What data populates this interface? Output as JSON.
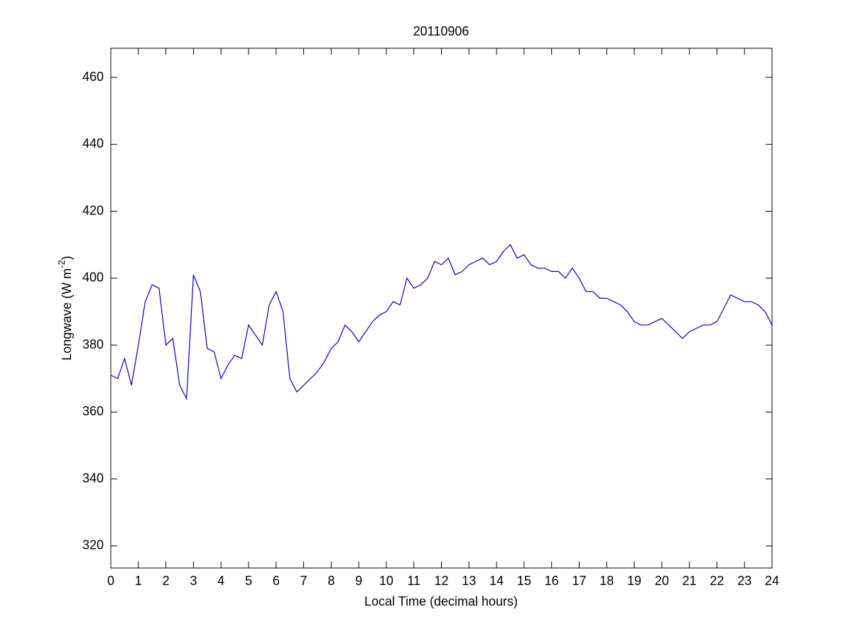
{
  "chart_data": {
    "type": "line",
    "title": "20110906",
    "xlabel": "Local Time (decimal hours)",
    "ylabel": {
      "text": "Longwave (W m",
      "superscript": "-2",
      "suffix": ")"
    },
    "x": [
      0,
      0.25,
      0.5,
      0.75,
      1,
      1.25,
      1.5,
      1.75,
      2,
      2.25,
      2.5,
      2.75,
      3,
      3.25,
      3.5,
      3.75,
      4,
      4.25,
      4.5,
      4.75,
      5,
      5.25,
      5.5,
      5.75,
      6,
      6.25,
      6.5,
      6.75,
      7,
      7.25,
      7.5,
      7.75,
      8,
      8.25,
      8.5,
      8.75,
      9,
      9.25,
      9.5,
      9.75,
      10,
      10.25,
      10.5,
      10.75,
      11,
      11.25,
      11.5,
      11.75,
      12,
      12.25,
      12.5,
      12.75,
      13,
      13.25,
      13.5,
      13.75,
      14,
      14.25,
      14.5,
      14.75,
      15,
      15.25,
      15.5,
      15.75,
      16,
      16.25,
      16.5,
      16.75,
      17,
      17.25,
      17.5,
      17.75,
      18,
      18.25,
      18.5,
      18.75,
      19,
      19.25,
      19.5,
      19.75,
      20,
      20.25,
      20.5,
      20.75,
      21,
      21.25,
      21.5,
      21.75,
      22,
      22.25,
      22.5,
      22.75,
      23,
      23.25,
      23.5,
      23.75,
      24
    ],
    "series": [
      {
        "color": "#0000b4",
        "values": [
          371,
          370,
          376,
          368,
          380,
          393,
          398,
          397,
          380,
          382,
          368,
          364,
          401,
          396,
          379,
          378,
          370,
          374,
          377,
          376,
          386,
          383,
          380,
          392,
          396,
          390,
          370,
          366,
          368,
          370,
          372,
          375,
          379,
          381,
          386,
          384,
          381,
          384,
          387,
          389,
          390,
          393,
          392,
          400,
          397,
          398,
          400,
          405,
          404,
          406,
          401,
          402,
          404,
          405,
          406,
          404,
          405,
          408,
          410,
          406,
          407,
          404,
          403,
          403,
          402,
          402,
          400,
          403,
          400,
          396,
          396,
          394,
          394,
          393,
          392,
          390,
          387,
          386,
          386,
          387,
          388,
          386,
          384,
          382,
          384,
          385,
          386,
          386,
          387,
          391,
          395,
          394,
          393,
          393,
          392,
          390,
          386
        ]
      }
    ],
    "xlim": [
      0,
      24
    ],
    "xticks": [
      0,
      1,
      2,
      3,
      4,
      5,
      6,
      7,
      8,
      9,
      10,
      11,
      12,
      13,
      14,
      15,
      16,
      17,
      18,
      19,
      20,
      21,
      22,
      23,
      24
    ],
    "ylim": [
      313.4,
      468.7
    ],
    "yticks": [
      320,
      340,
      360,
      380,
      400,
      420,
      440,
      460
    ]
  }
}
